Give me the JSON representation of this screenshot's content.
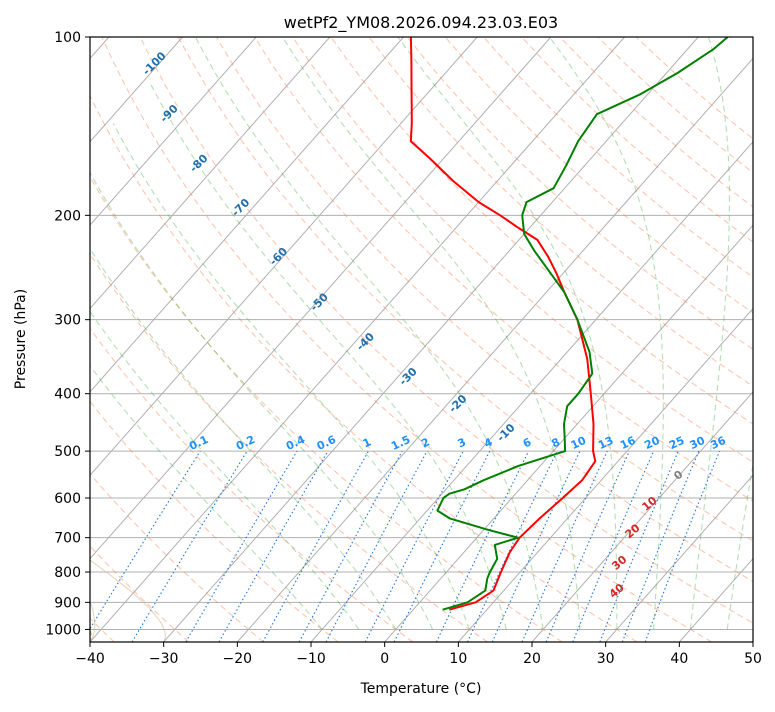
{
  "chart_data": {
    "type": "line",
    "chart_kind": "skew-t log-p diagram",
    "title": "wetPf2_YM08.2026.094.23.03.E03",
    "xlabel": "Temperature (°C)",
    "ylabel": "Pressure (hPa)",
    "xlim": [
      -40,
      50
    ],
    "ylim": [
      1050,
      100
    ],
    "y_scale": "log",
    "x_ticks": [
      -40,
      -30,
      -20,
      -10,
      0,
      10,
      20,
      30,
      40,
      50
    ],
    "y_ticks": [
      100,
      200,
      300,
      400,
      500,
      600,
      700,
      800,
      900,
      1000
    ],
    "grid": true,
    "series": [
      {
        "color": "#ff0000",
        "points": [
          [
            926,
            4.9
          ],
          [
            900,
            7.6
          ],
          [
            860,
            8.6
          ],
          [
            800,
            7.4
          ],
          [
            740,
            6.2
          ],
          [
            700,
            5.8
          ],
          [
            650,
            6.2
          ],
          [
            600,
            6.9
          ],
          [
            560,
            7.4
          ],
          [
            520,
            6.9
          ],
          [
            500,
            5.4
          ],
          [
            450,
            2.2
          ],
          [
            400,
            -1.8
          ],
          [
            350,
            -6.4
          ],
          [
            300,
            -12.5
          ],
          [
            270,
            -17.5
          ],
          [
            250,
            -21.0
          ],
          [
            235,
            -24.0
          ],
          [
            220,
            -27.5
          ],
          [
            210,
            -31.5
          ],
          [
            200,
            -35.5
          ],
          [
            190,
            -40.0
          ],
          [
            175,
            -46.0
          ],
          [
            160,
            -52.0
          ],
          [
            150,
            -56.5
          ],
          [
            140,
            -58.5
          ],
          [
            130,
            -60.8
          ],
          [
            120,
            -63.3
          ],
          [
            110,
            -66.0
          ],
          [
            100,
            -69.0
          ]
        ]
      },
      {
        "color": "#008000",
        "points": [
          [
            926,
            4.0
          ],
          [
            900,
            6.5
          ],
          [
            860,
            7.5
          ],
          [
            820,
            6.3
          ],
          [
            800,
            5.9
          ],
          [
            760,
            5.3
          ],
          [
            720,
            3.3
          ],
          [
            700,
            5.6
          ],
          [
            680,
            0.8
          ],
          [
            650,
            -5.9
          ],
          [
            630,
            -8.6
          ],
          [
            600,
            -9.3
          ],
          [
            590,
            -9.0
          ],
          [
            580,
            -7.5
          ],
          [
            560,
            -6.0
          ],
          [
            530,
            -3.0
          ],
          [
            500,
            1.6
          ],
          [
            480,
            0.3
          ],
          [
            450,
            -1.8
          ],
          [
            420,
            -3.5
          ],
          [
            400,
            -3.5
          ],
          [
            370,
            -4.0
          ],
          [
            340,
            -7.0
          ],
          [
            300,
            -12.5
          ],
          [
            270,
            -17.5
          ],
          [
            250,
            -21.8
          ],
          [
            230,
            -26.5
          ],
          [
            215,
            -30.0
          ],
          [
            200,
            -32.5
          ],
          [
            190,
            -33.5
          ],
          [
            180,
            -31.5
          ],
          [
            165,
            -32.5
          ],
          [
            150,
            -33.8
          ],
          [
            135,
            -34.5
          ],
          [
            125,
            -31.0
          ],
          [
            115,
            -28.5
          ],
          [
            105,
            -26.5
          ],
          [
            100,
            -26.0
          ]
        ]
      }
    ],
    "dry_adiabat_labels": [
      "-100",
      "-90",
      "-80",
      "-70",
      "-60",
      "-50",
      "-40",
      "-30",
      "-20",
      "-10",
      "0",
      "10",
      "20",
      "30",
      "40"
    ],
    "mixing_ratio_labels": [
      "0.1",
      "0.2",
      "0.4",
      "0.6",
      "1",
      "1.5",
      "2",
      "3",
      "4",
      "6",
      "8",
      "10",
      "13",
      "16",
      "20",
      "25",
      "30",
      "36"
    ],
    "background_lines": {
      "isotherms": "#b0b0b0",
      "dry_adiabats": "#ff7f50",
      "moist_adiabats": "#2ca02c",
      "mixing_ratio": "#1f77d4",
      "lcl_curve": "#d2b48c"
    }
  }
}
